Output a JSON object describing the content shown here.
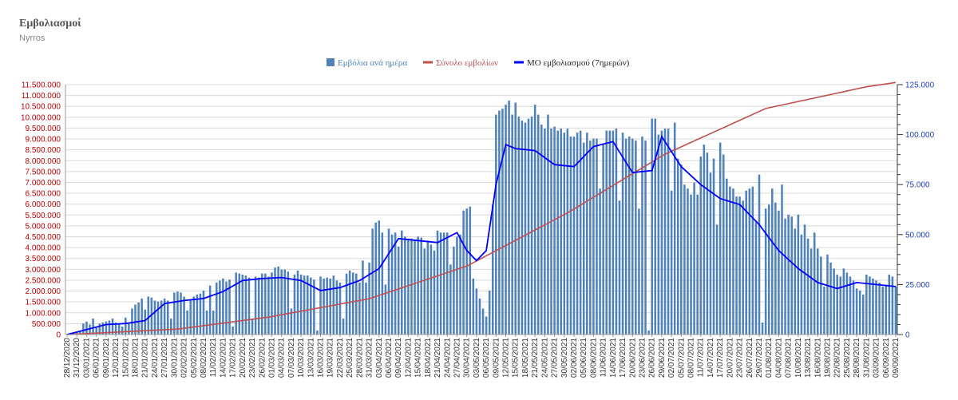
{
  "header": {
    "title": "Εμβολιασμοί",
    "subtitle": "Nyrros"
  },
  "chart_data": {
    "type": "bar",
    "legend_position": "top-center",
    "grid": true,
    "colors": {
      "bars": "#4f81bd",
      "cumulative": "#c0504d",
      "moving_avg": "#0000ff",
      "left_axis_text": "#c00000",
      "right_axis_text": "#1f3fbf"
    },
    "left_axis": {
      "ylim": [
        0,
        11500000
      ],
      "ticks": [
        "0",
        "500.000",
        "1.000.000",
        "1.500.000",
        "2.000.000",
        "2.500.000",
        "3.000.000",
        "3.500.000",
        "4.000.000",
        "4.500.000",
        "5.000.000",
        "5.500.000",
        "6.000.000",
        "6.500.000",
        "7.000.000",
        "7.500.000",
        "8.000.000",
        "8.500.000",
        "9.000.000",
        "9.500.000",
        "10.000.000",
        "10.500.000",
        "11.000.000",
        "11.500.000"
      ]
    },
    "right_axis": {
      "ylim": [
        0,
        125000
      ],
      "ticks": [
        "0",
        "25.000",
        "50.000",
        "75.000",
        "100.000",
        "125.000"
      ]
    },
    "x_tick_labels": [
      "28/12/2020",
      "31/12/2020",
      "03/01/2021",
      "06/01/2021",
      "09/01/2021",
      "12/01/2021",
      "15/01/2021",
      "18/01/2021",
      "21/01/2021",
      "24/01/2021",
      "27/01/2021",
      "30/01/2021",
      "02/02/2021",
      "05/02/2021",
      "08/02/2021",
      "11/02/2021",
      "14/02/2021",
      "17/02/2021",
      "20/02/2021",
      "23/02/2021",
      "26/02/2021",
      "01/03/2021",
      "04/03/2021",
      "07/03/2021",
      "10/03/2021",
      "13/03/2021",
      "16/03/2021",
      "19/03/2021",
      "22/03/2021",
      "25/03/2021",
      "28/03/2021",
      "31/03/2021",
      "03/04/2021",
      "06/04/2021",
      "09/04/2021",
      "12/04/2021",
      "15/04/2021",
      "18/04/2021",
      "21/04/2021",
      "24/04/2021",
      "27/04/2021",
      "30/04/2021",
      "03/05/2021",
      "06/05/2021",
      "09/05/2021",
      "12/05/2021",
      "15/05/2021",
      "18/05/2021",
      "21/05/2021",
      "24/05/2021",
      "27/05/2021",
      "30/05/2021",
      "02/06/2021",
      "05/06/2021",
      "08/06/2021",
      "11/06/2021",
      "14/06/2021",
      "17/06/2021",
      "20/06/2021",
      "23/06/2021",
      "26/06/2021",
      "29/06/2021",
      "02/07/2021",
      "05/07/2021",
      "08/07/2021",
      "11/07/2021",
      "14/07/2021",
      "17/07/2021",
      "20/07/2021",
      "23/07/2021",
      "26/07/2021",
      "29/07/2021",
      "01/08/2021",
      "04/08/2021",
      "07/08/2021",
      "10/08/2021",
      "13/08/2021",
      "16/08/2021",
      "19/08/2021",
      "22/08/2021",
      "25/08/2021",
      "28/08/2021",
      "31/08/2021",
      "03/09/2021",
      "06/09/2021",
      "09/09/2021"
    ],
    "series": [
      {
        "name": "Εμβόλια ανά ημέρα",
        "type": "bar",
        "axis": "right",
        "values": [
          0,
          500,
          800,
          1200,
          1800,
          5500,
          6500,
          5000,
          8000,
          4000,
          5500,
          6000,
          6500,
          7000,
          8000,
          6000,
          5000,
          4000,
          8500,
          6000,
          13000,
          15000,
          16000,
          18000,
          12500,
          19000,
          18500,
          17000,
          16500,
          17000,
          18000,
          17000,
          8000,
          21000,
          21500,
          21000,
          19000,
          12000,
          17000,
          19000,
          20000,
          20500,
          22000,
          12000,
          24500,
          12000,
          26000,
          27000,
          28000,
          26500,
          27500,
          4000,
          31000,
          30500,
          30000,
          29500,
          28500,
          8000,
          29000,
          28500,
          30500,
          30500,
          29000,
          31000,
          33500,
          34000,
          32500,
          32500,
          31500,
          13000,
          30000,
          32000,
          30000,
          29500,
          29500,
          28500,
          27500,
          2000,
          29000,
          28000,
          28500,
          28000,
          29500,
          27000,
          26000,
          8000,
          30500,
          32000,
          31000,
          30500,
          26000,
          37000,
          26000,
          36000,
          53000,
          56000,
          57000,
          51000,
          25000,
          53000,
          50000,
          51000,
          44000,
          52000,
          49000,
          48000,
          48000,
          47000,
          49000,
          48500,
          43000,
          47000,
          45000,
          42000,
          52000,
          51000,
          51000,
          51000,
          35000,
          44000,
          49000,
          50000,
          62000,
          63000,
          64000,
          28000,
          23000,
          18000,
          13000,
          9000,
          22000,
          65000,
          110000,
          112000,
          113000,
          115000,
          117000,
          110000,
          116000,
          109000,
          107000,
          106000,
          108000,
          109000,
          115000,
          110000,
          105000,
          103000,
          110000,
          103000,
          104000,
          102000,
          103000,
          101000,
          103000,
          99000,
          99000,
          101000,
          102000,
          96000,
          101000,
          97000,
          98000,
          98000,
          73000,
          95000,
          102000,
          102000,
          102000,
          103000,
          67000,
          101000,
          98000,
          99000,
          98000,
          97000,
          63000,
          99000,
          97000,
          2000,
          108000,
          108000,
          100000,
          102000,
          103000,
          103000,
          72000,
          106000,
          88000,
          85000,
          75000,
          73000,
          70000,
          76000,
          70000,
          89000,
          95000,
          91000,
          81000,
          88000,
          55000,
          96000,
          90000,
          78000,
          74000,
          73000,
          69000,
          69000,
          67000,
          72000,
          73000,
          74000,
          57000,
          80000,
          6000,
          63000,
          65000,
          73000,
          66000,
          62000,
          75000,
          58000,
          60000,
          59000,
          53000,
          60000,
          50000,
          55000,
          48000,
          43000,
          51000,
          43000,
          39000,
          24000,
          40000,
          36000,
          33000,
          30000,
          29000,
          33000,
          31000,
          29000,
          27000,
          23000,
          22000,
          20000,
          30000,
          29000,
          28000,
          27000,
          26000,
          24000,
          25000,
          30000,
          29000,
          24000,
          30000,
          31000,
          29000,
          29000,
          26000,
          27000,
          33000,
          31000,
          28000,
          32000,
          29000,
          29000,
          26000,
          23000,
          27000,
          29000,
          27000,
          25000,
          28000,
          30000,
          31000
        ]
      },
      {
        "name": "Σύνολο εμβολίων",
        "type": "line",
        "axis": "left",
        "x": [
          "28/12/2020",
          "31/01/2021",
          "28/02/2021",
          "31/03/2021",
          "30/04/2021",
          "31/05/2021",
          "30/06/2021",
          "31/07/2021",
          "31/08/2021",
          "09/09/2021"
        ],
        "values": [
          0,
          250000,
          800000,
          1650000,
          3150000,
          5600000,
          8300000,
          10400000,
          11400000,
          11600000
        ]
      },
      {
        "name": "ΜΟ εμβολιασμού (7ημερών)",
        "type": "line",
        "axis": "right",
        "x": [
          "28/12/2020",
          "03/01/2021",
          "09/01/2021",
          "15/01/2021",
          "21/01/2021",
          "27/01/2021",
          "02/02/2021",
          "08/02/2021",
          "14/02/2021",
          "20/02/2021",
          "26/02/2021",
          "04/03/2021",
          "10/03/2021",
          "16/03/2021",
          "22/03/2021",
          "28/03/2021",
          "03/04/2021",
          "09/04/2021",
          "15/04/2021",
          "21/04/2021",
          "27/04/2021",
          "30/04/2021",
          "03/05/2021",
          "06/05/2021",
          "09/05/2021",
          "12/05/2021",
          "15/05/2021",
          "21/05/2021",
          "27/05/2021",
          "02/06/2021",
          "08/06/2021",
          "14/06/2021",
          "20/06/2021",
          "26/06/2021",
          "29/06/2021",
          "05/07/2021",
          "11/07/2021",
          "17/07/2021",
          "23/07/2021",
          "29/07/2021",
          "04/08/2021",
          "10/08/2021",
          "16/08/2021",
          "22/08/2021",
          "28/08/2021",
          "03/09/2021",
          "09/09/2021"
        ],
        "values": [
          0,
          2500,
          5000,
          5500,
          7000,
          15500,
          17000,
          18000,
          21500,
          27000,
          28000,
          28500,
          27000,
          22000,
          23500,
          27000,
          33000,
          48000,
          47000,
          46000,
          51000,
          42000,
          37000,
          42000,
          75000,
          95000,
          93000,
          92000,
          85000,
          84000,
          94000,
          96500,
          81000,
          82000,
          99000,
          84000,
          75000,
          68000,
          65000,
          55000,
          42000,
          33000,
          26000,
          23000,
          26000,
          25000,
          24000
        ]
      }
    ]
  }
}
